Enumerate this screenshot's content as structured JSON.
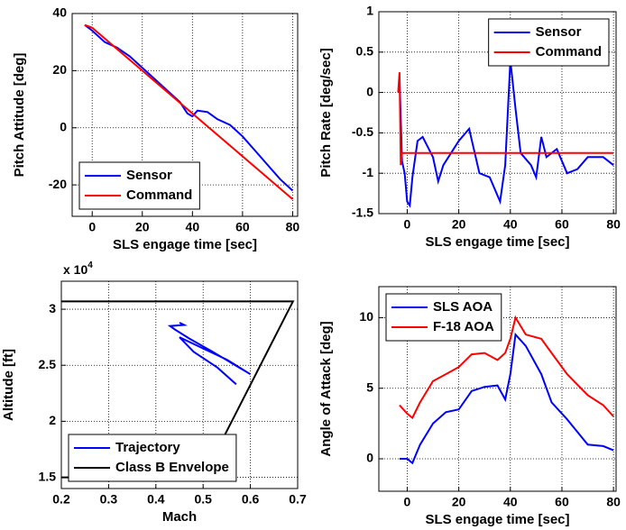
{
  "chart_data": [
    {
      "type": "line",
      "xlabel": "SLS engage time [sec]",
      "ylabel": "Pitch Attitude [deg]",
      "xlim": [
        -8,
        82
      ],
      "ylim": [
        -31,
        40
      ],
      "xticks": [
        0,
        20,
        40,
        60,
        80
      ],
      "yticks": [
        -20,
        0,
        20,
        40
      ],
      "grid": true,
      "legend": "lower left",
      "series": [
        {
          "name": "Sensor",
          "color": "#0000ff",
          "x": [
            -3,
            0,
            5,
            10,
            15,
            20,
            25,
            30,
            35,
            38,
            40,
            42,
            46,
            50,
            55,
            60,
            65,
            70,
            75,
            80
          ],
          "values": [
            36,
            34,
            30,
            28,
            25,
            21,
            17,
            13,
            9,
            5,
            4,
            6,
            5.5,
            3,
            1,
            -3,
            -8,
            -13,
            -18,
            -22
          ]
        },
        {
          "name": "Command",
          "color": "#ff0000",
          "x": [
            -3,
            0,
            80
          ],
          "values": [
            36,
            35,
            -25
          ]
        }
      ]
    },
    {
      "type": "line",
      "xlabel": "SLS engage time [sec]",
      "ylabel": "Pitch Rate [deg/sec]",
      "xlim": [
        -11,
        81
      ],
      "ylim": [
        -1.5,
        1
      ],
      "xticks": [
        0,
        20,
        40,
        60,
        80
      ],
      "yticks": [
        -1.5,
        -1,
        -0.5,
        0,
        0.5,
        1
      ],
      "grid": true,
      "legend": "upper right",
      "series": [
        {
          "name": "Sensor",
          "color": "#0000ff",
          "x": [
            -3,
            -2,
            -1,
            0,
            1,
            2,
            4,
            6,
            10,
            12,
            14,
            18,
            20,
            24,
            28,
            32,
            36,
            38,
            40,
            42,
            44,
            48,
            50,
            52,
            54,
            58,
            62,
            66,
            70,
            76,
            80
          ],
          "values": [
            0.2,
            -0.85,
            -1.0,
            -1.35,
            -1.4,
            -1.05,
            -0.6,
            -0.55,
            -0.8,
            -1.1,
            -0.9,
            -0.7,
            -0.6,
            -0.45,
            -1.0,
            -1.05,
            -1.35,
            -0.9,
            0.4,
            -0.2,
            -0.75,
            -0.9,
            -1.05,
            -0.55,
            -0.8,
            -0.7,
            -1.0,
            -0.95,
            -0.8,
            -0.8,
            -0.9
          ]
        },
        {
          "name": "Command",
          "color": "#ff0000",
          "x": [
            -3.5,
            -3,
            -2.5,
            -2,
            80
          ],
          "values": [
            0,
            0.25,
            -0.9,
            -0.75,
            -0.75
          ]
        }
      ]
    },
    {
      "type": "line",
      "xlabel": "Mach",
      "ylabel": "Altitude [ft]",
      "scale_label": {
        "base": "x 10",
        "power": "4"
      },
      "xlim": [
        0.2,
        0.7
      ],
      "ylim": [
        1.4,
        3.25
      ],
      "xticks": [
        0.2,
        0.3,
        0.4,
        0.5,
        0.6,
        0.7
      ],
      "yticks": [
        1.5,
        2,
        2.5,
        3
      ],
      "grid": true,
      "legend": "lower left",
      "series": [
        {
          "name": "Trajectory",
          "color": "#0000ff",
          "x": [
            0.45,
            0.46,
            0.43,
            0.44,
            0.47,
            0.52,
            0.6,
            0.55,
            0.5,
            0.45,
            0.48,
            0.53,
            0.57
          ],
          "values": [
            2.88,
            2.86,
            2.85,
            2.82,
            2.74,
            2.62,
            2.42,
            2.55,
            2.65,
            2.75,
            2.62,
            2.48,
            2.33
          ]
        },
        {
          "name": "Class B Envelope",
          "color": "#000000",
          "x": [
            0.2,
            0.69,
            0.5,
            0.2
          ],
          "values": [
            3.07,
            3.07,
            1.5,
            1.5
          ]
        }
      ]
    },
    {
      "type": "line",
      "xlabel": "SLS engage time [sec]",
      "ylabel": "Angle of Attack [deg]",
      "xlim": [
        -11,
        81
      ],
      "ylim": [
        -2.3,
        12.2
      ],
      "xticks": [
        0,
        20,
        40,
        60,
        80
      ],
      "yticks": [
        0,
        5,
        10
      ],
      "grid": true,
      "legend": "upper left",
      "series": [
        {
          "name": "SLS AOA",
          "color": "#0000ff",
          "x": [
            -3,
            0,
            2,
            5,
            10,
            15,
            20,
            25,
            30,
            35,
            38,
            40,
            42,
            46,
            52,
            56,
            62,
            70,
            76,
            80
          ],
          "values": [
            0,
            0,
            -0.3,
            1,
            2.5,
            3.3,
            3.5,
            4.8,
            5.1,
            5.2,
            4.2,
            6,
            8.8,
            8,
            6,
            4,
            2.8,
            1,
            0.9,
            0.6
          ]
        },
        {
          "name": "F-18 AOA",
          "color": "#ff0000",
          "x": [
            -3,
            0,
            2,
            5,
            10,
            15,
            20,
            25,
            30,
            35,
            38,
            40,
            42,
            46,
            52,
            56,
            62,
            70,
            76,
            80
          ],
          "values": [
            3.8,
            3.2,
            2.9,
            4,
            5.5,
            6,
            6.5,
            7.4,
            7.5,
            7,
            7.5,
            8.5,
            10,
            8.8,
            8.5,
            7.5,
            6,
            4.5,
            3.8,
            3
          ]
        }
      ]
    }
  ]
}
